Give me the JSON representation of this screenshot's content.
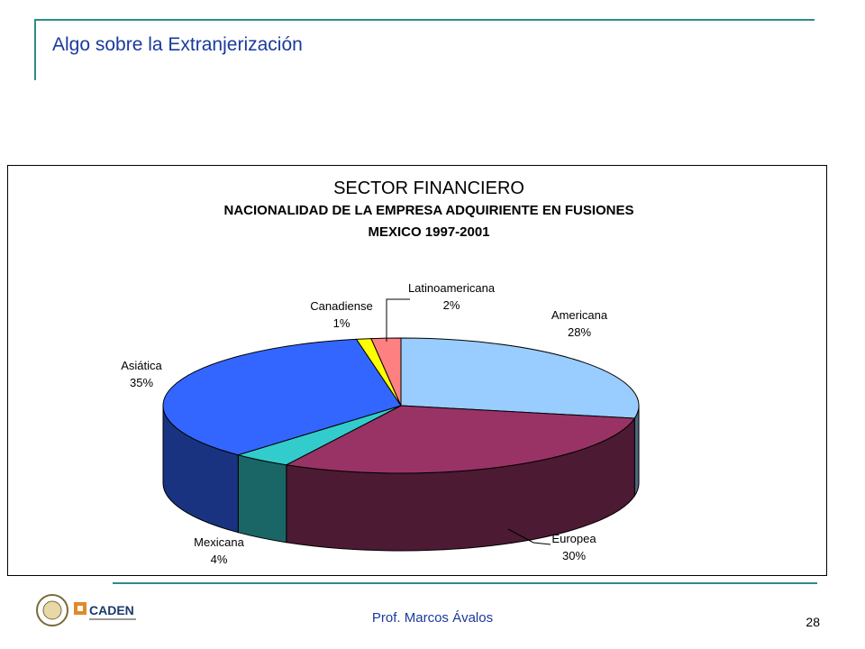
{
  "slide": {
    "title": "Algo sobre la Extranjerización",
    "author": "Prof. Marcos Ávalos",
    "page_number": "28",
    "logo_text": "CADEN"
  },
  "chart_data": {
    "type": "pie",
    "title": "SECTOR FINANCIERO",
    "subtitle": "NACIONALIDAD DE LA EMPRESA ADQUIRIENTE EN FUSIONES",
    "subtitle2": "MEXICO 1997-2001",
    "three_d": true,
    "legend": "none",
    "slices": [
      {
        "name": "Americana",
        "percent_label": "28%",
        "value": 28,
        "color": "#99ccff",
        "side_color": "#4d6680"
      },
      {
        "name": "Europea",
        "percent_label": "30%",
        "value": 30,
        "color": "#993366",
        "side_color": "#4d1a33"
      },
      {
        "name": "Mexicana",
        "percent_label": "4%",
        "value": 4,
        "color": "#33cccc",
        "side_color": "#1a6666"
      },
      {
        "name": "Asiática",
        "percent_label": "35%",
        "value": 35,
        "color": "#3366ff",
        "side_color": "#1a3380"
      },
      {
        "name": "Canadiense",
        "percent_label": "1%",
        "value": 1,
        "color": "#ffff00",
        "side_color": "#808000"
      },
      {
        "name": "Latinoamericana",
        "percent_label": "2%",
        "value": 2,
        "color": "#ff8080",
        "side_color": "#804040"
      }
    ]
  }
}
